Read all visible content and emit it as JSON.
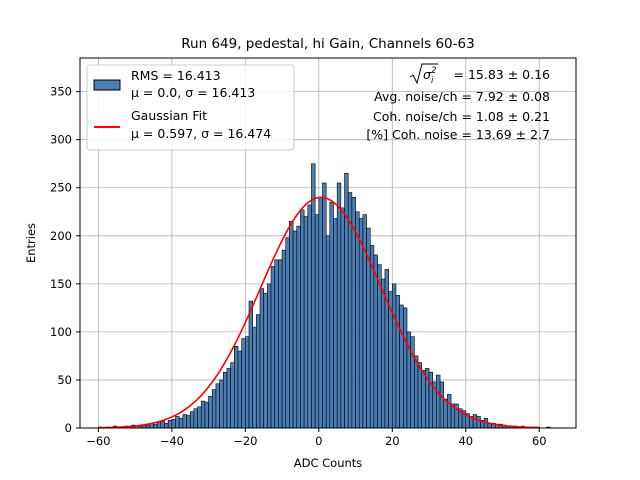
{
  "chart_data": {
    "type": "bar",
    "title": "Run 649, pedestal, hi Gain, Channels 60-63",
    "xlabel": "ADC Counts",
    "ylabel": "Entries",
    "xlim": [
      -65,
      70
    ],
    "ylim": [
      0,
      385
    ],
    "xticks": [
      -60,
      -40,
      -20,
      0,
      20,
      40,
      60
    ],
    "yticks": [
      0,
      50,
      100,
      150,
      200,
      250,
      300,
      350
    ],
    "grid": true,
    "legend_position": "top-left",
    "bin_start": -60,
    "bin_width": 1,
    "values": [
      1,
      0,
      1,
      0,
      2,
      1,
      1,
      2,
      1,
      3,
      2,
      2,
      3,
      3,
      5,
      4,
      6,
      7,
      5,
      8,
      9,
      12,
      10,
      14,
      13,
      17,
      20,
      22,
      28,
      27,
      33,
      40,
      46,
      50,
      58,
      62,
      68,
      85,
      80,
      93,
      95,
      132,
      105,
      118,
      145,
      140,
      150,
      168,
      175,
      175,
      185,
      198,
      215,
      205,
      210,
      227,
      220,
      232,
      275,
      222,
      240,
      255,
      200,
      235,
      218,
      255,
      229,
      265,
      245,
      240,
      225,
      218,
      222,
      208,
      190,
      180,
      170,
      155,
      165,
      142,
      150,
      138,
      128,
      125,
      100,
      95,
      75,
      68,
      60,
      62,
      58,
      48,
      55,
      48,
      30,
      35,
      25,
      25,
      20,
      18,
      15,
      12,
      14,
      12,
      8,
      10,
      5,
      5,
      4,
      4,
      3,
      2,
      2,
      2,
      1,
      2,
      1,
      0,
      1,
      1,
      0,
      0,
      1
    ],
    "series": [
      {
        "name": "RMS = 16.413",
        "detail": "μ = 0.0, σ = 16.413",
        "kind": "histogram",
        "color": "#4a7eb5"
      },
      {
        "name": "Gaussian Fit",
        "detail": "μ = 0.597, σ = 16.474",
        "kind": "line",
        "color": "#ff0000",
        "mu": 0.597,
        "sigma": 16.474,
        "amplitude": 240
      }
    ],
    "annotations": [
      "√σ²ᵢ = 15.83 ± 0.16",
      "Avg. noise/ch = 7.92 ± 0.08",
      "Coh. noise/ch = 1.08 ± 0.21",
      "[%] Coh. noise = 13.69 ± 2.7"
    ],
    "annotation_sqrt": {
      "symbol": "σ",
      "subscript": "i",
      "superscript": "2",
      "value": " = 15.83 ± 0.16"
    }
  },
  "colors": {
    "bar_fill": "#4a7eb5",
    "bar_edge": "#000000",
    "fit_line": "#ff0000",
    "grid": "#b0b0b0"
  }
}
